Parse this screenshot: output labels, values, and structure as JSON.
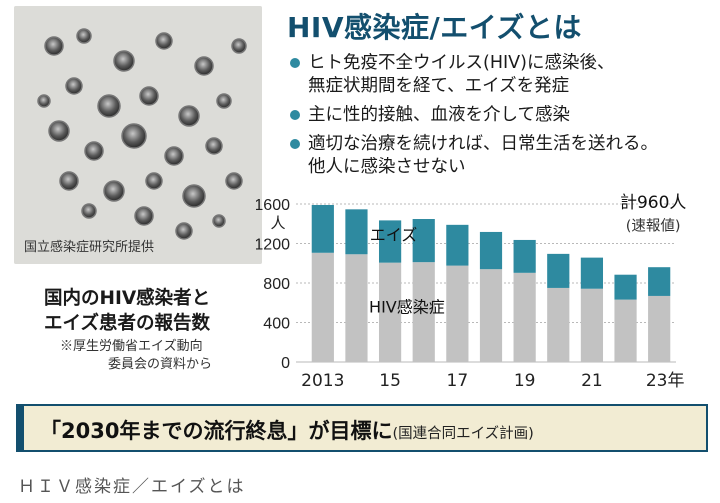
{
  "figure": {
    "title": "HIV感染症/エイズとは",
    "bullets": [
      {
        "lines": [
          "ヒト免疫不全ウイルス(HIV)に感染後、",
          "無症状期間を経て、エイズを発症"
        ]
      },
      {
        "lines": [
          "主に性的接触、血液を介して感染"
        ]
      },
      {
        "lines": [
          "適切な治療を続ければ、日常生活を送れる。",
          "他人に感染させない"
        ]
      }
    ],
    "photo_credit": "国立感染症研究所提供",
    "chart_caption": [
      "国内のHIV感染者と",
      "エイズ患者の報告数"
    ],
    "chart_note": [
      "※厚生労働省エイズ動向",
      "委員会の資料から"
    ],
    "banner": {
      "main": "「2030年までの流行終息」が目標に",
      "sub": "(国連合同エイズ計画)"
    }
  },
  "page_caption": "ＨＩＶ感染症／エイズとは",
  "colors": {
    "hiv": "#c2c2c2",
    "aids": "#2e8aa0",
    "title": "#134f6e"
  },
  "chart_data": {
    "type": "bar",
    "stacked": true,
    "categories": [
      "2013",
      "2014",
      "2015",
      "2016",
      "2017",
      "2018",
      "2019",
      "2020",
      "2021",
      "2022",
      "2023"
    ],
    "tick_labels": [
      "2013",
      "",
      "15",
      "",
      "17",
      "",
      "19",
      "",
      "21",
      "",
      "23年"
    ],
    "series": [
      {
        "name": "HIV感染症",
        "values": [
          1106,
          1091,
          1006,
          1011,
          976,
          940,
          903,
          750,
          742,
          632,
          669
        ]
      },
      {
        "name": "エイズ",
        "values": [
          484,
          455,
          428,
          437,
          413,
          377,
          333,
          345,
          315,
          252,
          291
        ]
      }
    ],
    "y_ticks": [
      0,
      400,
      800,
      1200,
      1600
    ],
    "y_unit": "人",
    "ylim": [
      0,
      1600
    ],
    "annotation": {
      "text": "計960人",
      "sub": "(速報値)"
    }
  }
}
